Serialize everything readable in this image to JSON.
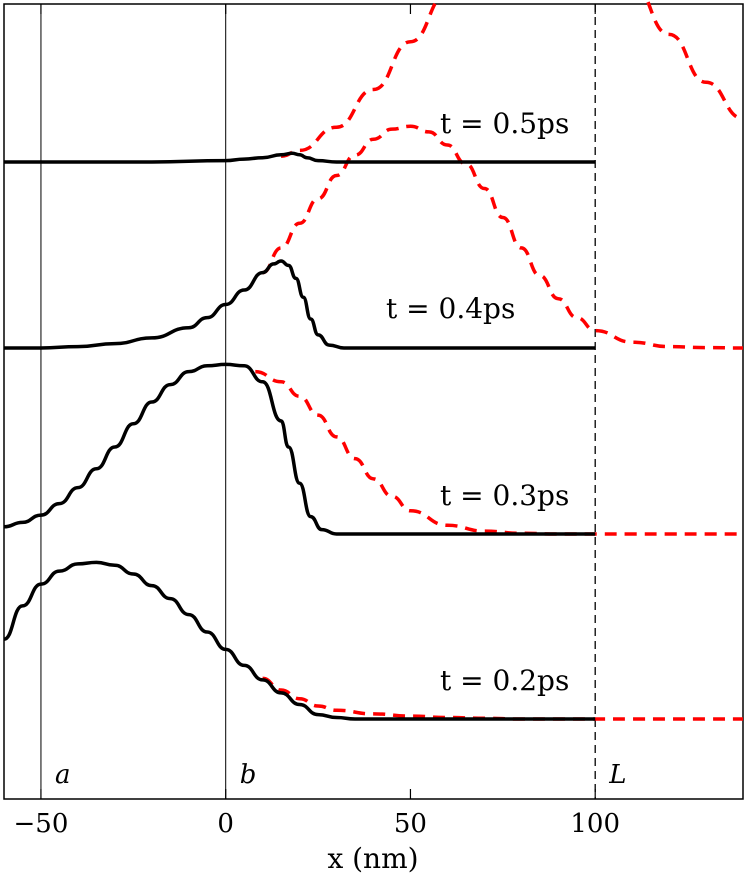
{
  "chart_data": {
    "type": "line",
    "xlabel": "x (nm)",
    "xlim": [
      -60,
      140
    ],
    "xticks": [
      -50,
      0,
      50,
      100
    ],
    "xtick_labels": [
      "−50",
      "0",
      "50",
      "100"
    ],
    "yticks": [],
    "grid": false,
    "legend": "none",
    "vertical_markers": [
      {
        "x": -50,
        "label": "a",
        "style": "solid"
      },
      {
        "x": 0,
        "label": "b",
        "style": "solid"
      },
      {
        "x": 100,
        "label": "L",
        "style": "dashed"
      }
    ],
    "series": [
      {
        "time_label": "t = 0.2ps",
        "offset": 0,
        "solid": {
          "x": [
            -60,
            -55,
            -50,
            -45,
            -40,
            -35,
            -30,
            -25,
            -20,
            -15,
            -10,
            -5,
            0,
            5,
            10,
            15,
            20,
            25,
            30,
            35,
            40,
            50,
            60,
            70,
            80,
            90,
            100
          ],
          "y": [
            0.55,
            0.78,
            0.93,
            1.02,
            1.07,
            1.08,
            1.06,
            1.0,
            0.92,
            0.83,
            0.72,
            0.6,
            0.48,
            0.37,
            0.27,
            0.18,
            0.1,
            0.03,
            0.01,
            0,
            0,
            0,
            0,
            0,
            0,
            0,
            0
          ]
        },
        "dashed": {
          "x": [
            10,
            15,
            20,
            25,
            30,
            40,
            50,
            60,
            70,
            80,
            90,
            100,
            110,
            120,
            130,
            140
          ],
          "y": [
            0.28,
            0.2,
            0.14,
            0.09,
            0.06,
            0.035,
            0.02,
            0.01,
            0.005,
            0,
            0,
            0,
            0,
            0,
            0,
            0
          ]
        }
      },
      {
        "time_label": "t = 0.3ps",
        "offset": 1,
        "solid": {
          "x": [
            -60,
            -55,
            -50,
            -45,
            -40,
            -35,
            -30,
            -25,
            -20,
            -15,
            -10,
            -5,
            0,
            5,
            10,
            15,
            17,
            20,
            23,
            26,
            30,
            35,
            40,
            50,
            60,
            70,
            80,
            90,
            100
          ],
          "y": [
            0.05,
            0.08,
            0.13,
            0.21,
            0.32,
            0.45,
            0.6,
            0.76,
            0.91,
            1.03,
            1.12,
            1.16,
            1.17,
            1.16,
            1.05,
            0.78,
            0.6,
            0.35,
            0.12,
            0.03,
            0,
            0,
            0,
            0,
            0,
            0,
            0,
            0,
            0
          ]
        },
        "dashed": {
          "x": [
            8,
            15,
            20,
            25,
            30,
            35,
            40,
            45,
            50,
            60,
            70,
            80,
            90,
            100,
            110,
            120,
            130,
            140
          ],
          "y": [
            1.12,
            1.05,
            0.95,
            0.82,
            0.67,
            0.52,
            0.38,
            0.26,
            0.16,
            0.06,
            0.02,
            0.005,
            0,
            0,
            0,
            0,
            0,
            0
          ]
        }
      },
      {
        "time_label": "t = 0.4ps",
        "offset": 2,
        "solid": {
          "x": [
            -60,
            -50,
            -40,
            -30,
            -20,
            -10,
            -5,
            0,
            5,
            10,
            13,
            15,
            17,
            19,
            21,
            23,
            25,
            28,
            32,
            40,
            50,
            60,
            70,
            80,
            90,
            100
          ],
          "y": [
            0,
            0,
            0.01,
            0.03,
            0.07,
            0.14,
            0.21,
            0.3,
            0.4,
            0.52,
            0.58,
            0.6,
            0.57,
            0.48,
            0.35,
            0.2,
            0.09,
            0.02,
            0,
            0,
            0,
            0,
            0,
            0,
            0,
            0
          ]
        },
        "dashed": {
          "x": [
            10,
            15,
            20,
            25,
            30,
            35,
            40,
            45,
            50,
            55,
            60,
            65,
            70,
            75,
            80,
            85,
            90,
            95,
            100,
            110,
            120,
            130,
            140
          ],
          "y": [
            0.52,
            0.69,
            0.86,
            1.03,
            1.19,
            1.33,
            1.44,
            1.51,
            1.53,
            1.49,
            1.4,
            1.27,
            1.1,
            0.9,
            0.69,
            0.5,
            0.34,
            0.21,
            0.12,
            0.04,
            0.01,
            0.003,
            0
          ]
        }
      },
      {
        "time_label": "t = 0.5ps",
        "offset": 3,
        "solid": {
          "x": [
            -60,
            -40,
            -20,
            0,
            5,
            10,
            15,
            18,
            20,
            22,
            25,
            30,
            40,
            60,
            80,
            100
          ],
          "y": [
            0,
            0,
            0,
            0.01,
            0.02,
            0.03,
            0.05,
            0.06,
            0.05,
            0.03,
            0.01,
            0,
            0,
            0,
            0,
            0
          ]
        },
        "dashed": {
          "x": [
            15,
            20,
            30,
            40,
            50,
            60,
            70,
            80,
            85,
            90,
            95,
            100,
            110,
            120,
            130,
            140
          ],
          "y": [
            0.04,
            0.08,
            0.24,
            0.5,
            0.83,
            1.16,
            1.44,
            1.62,
            1.66,
            1.65,
            1.6,
            1.51,
            1.23,
            0.88,
            0.55,
            0.3
          ]
        }
      }
    ],
    "colors": {
      "solid": "#000000",
      "dashed": "#ff0000",
      "marker": "#000000"
    }
  }
}
